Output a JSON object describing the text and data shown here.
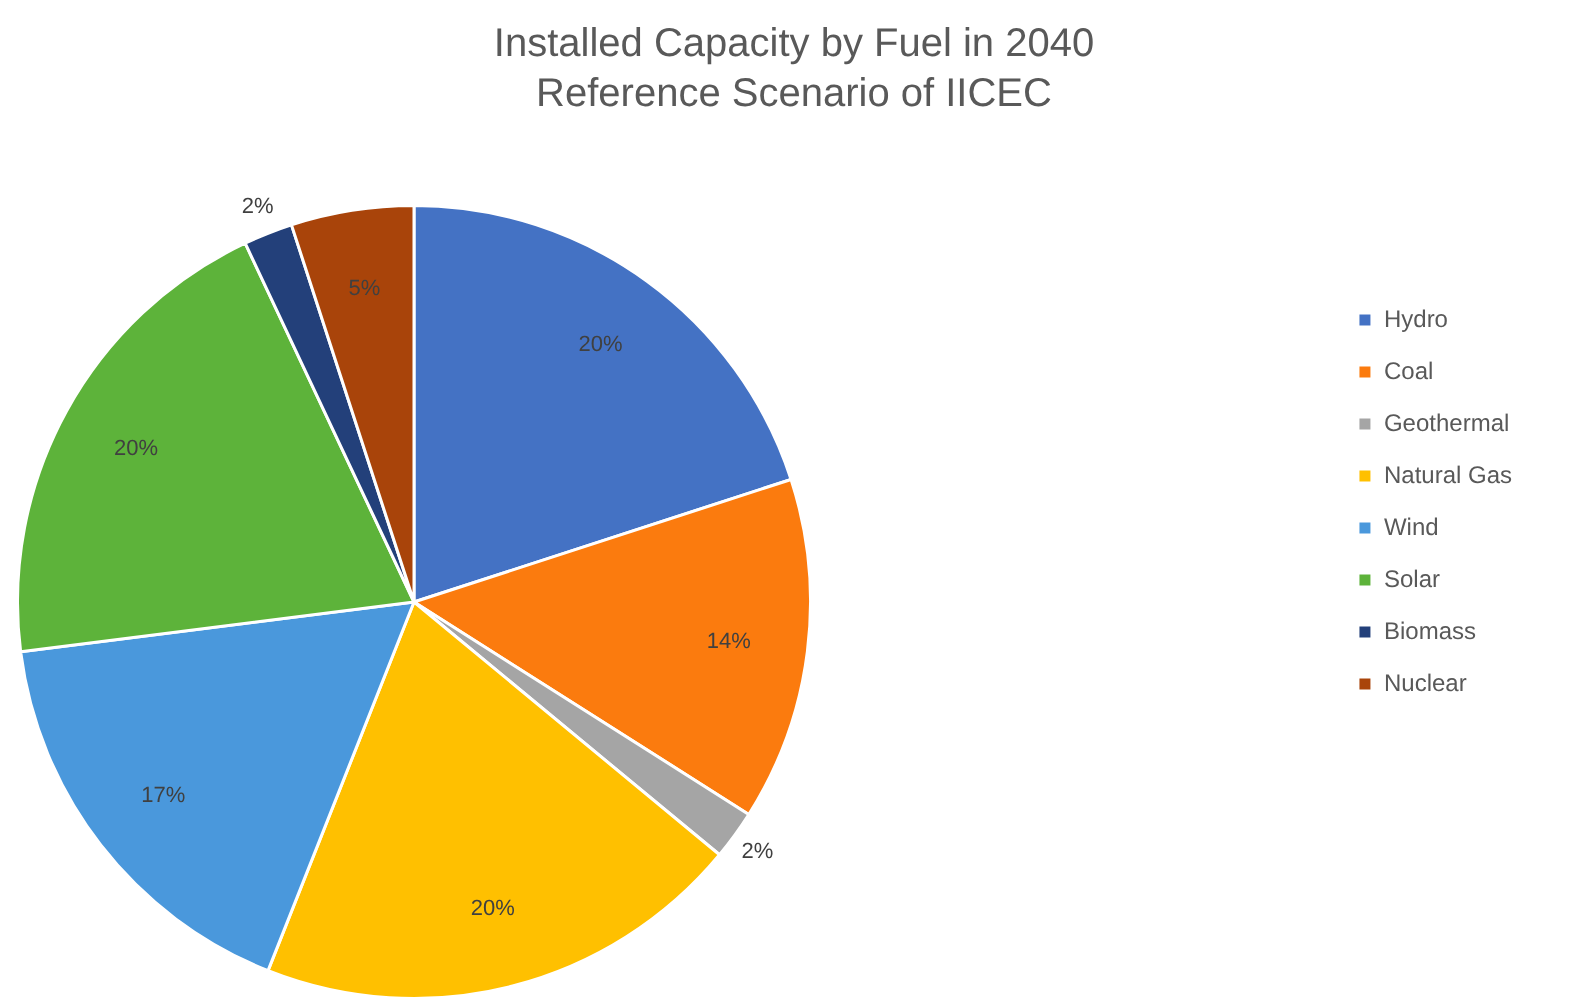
{
  "chart_data": {
    "type": "pie",
    "title": "Installed Capacity by Fuel in 2040\nReference Scenario of IICEC",
    "categories": [
      "Hydro",
      "Coal",
      "Geothermal",
      "Natural Gas",
      "Wind",
      "Solar",
      "Biomass",
      "Nuclear"
    ],
    "values": [
      20,
      14,
      2,
      20,
      17,
      20,
      2,
      5
    ],
    "colors": [
      "#4472c4",
      "#fb7b0e",
      "#a5a5a5",
      "#ffc000",
      "#4a98dc",
      "#5db33a",
      "#23407a",
      "#a9440a"
    ],
    "value_labels": [
      "20%",
      "14%",
      "2%",
      "20%",
      "17%",
      "20%",
      "2%",
      "5%"
    ],
    "legend": "right"
  }
}
